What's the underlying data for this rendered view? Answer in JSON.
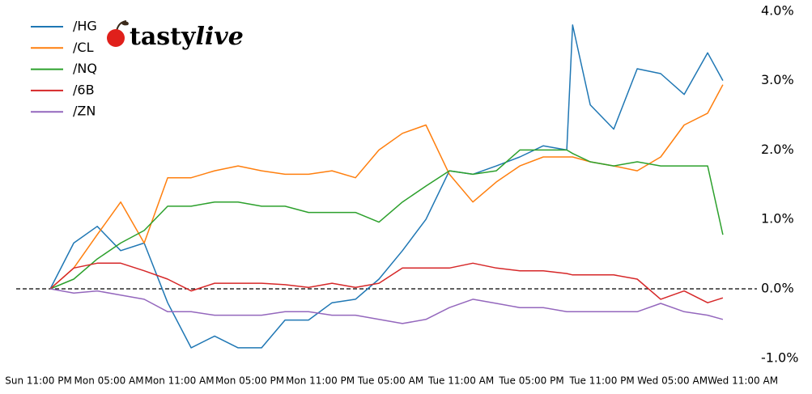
{
  "chart_data": {
    "type": "line",
    "logo": {
      "prefix": "tasty",
      "suffix": "live"
    },
    "x": [
      1,
      3,
      5,
      7,
      9,
      11,
      13,
      15,
      17,
      19,
      21,
      23,
      25,
      27,
      29,
      31,
      33,
      35,
      37,
      39,
      41,
      43,
      45,
      45.5,
      47,
      49,
      51,
      53,
      55,
      57,
      58.3
    ],
    "xlim": [
      -1.9,
      61.2
    ],
    "xticks": [
      {
        "value": 0,
        "label": "Sun 11:00 PM"
      },
      {
        "value": 6,
        "label": "Mon 05:00 AM"
      },
      {
        "value": 12,
        "label": "Mon 11:00 AM"
      },
      {
        "value": 18,
        "label": "Mon 05:00 PM"
      },
      {
        "value": 24,
        "label": "Mon 11:00 PM"
      },
      {
        "value": 30,
        "label": "Tue 05:00 AM"
      },
      {
        "value": 36,
        "label": "Tue 11:00 AM"
      },
      {
        "value": 42,
        "label": "Tue 05:00 PM"
      },
      {
        "value": 48,
        "label": "Tue 11:00 PM"
      },
      {
        "value": 54,
        "label": "Wed 05:00 AM"
      },
      {
        "value": 60,
        "label": "Wed 11:00 AM"
      }
    ],
    "ylim": [
      -1.1,
      4.15
    ],
    "yticks": [
      {
        "value": 4,
        "label": "4.0%"
      },
      {
        "value": 3,
        "label": "3.0%"
      },
      {
        "value": 2,
        "label": "2.0%"
      },
      {
        "value": 1,
        "label": "1.0%"
      },
      {
        "value": 0,
        "label": "0.0%"
      },
      {
        "value": -1,
        "label": "-1.0%"
      }
    ],
    "reference_line": {
      "value": 0,
      "style": "dashed"
    },
    "legend": "upper left",
    "series": [
      {
        "name": "/HG",
        "color": "#1f77b4",
        "values": [
          0,
          0.66,
          0.9,
          0.55,
          0.66,
          -0.2,
          -0.85,
          -0.68,
          -0.85,
          -0.85,
          -0.45,
          -0.45,
          -0.2,
          -0.15,
          0.14,
          0.55,
          1.0,
          1.7,
          1.65,
          1.77,
          1.9,
          2.06,
          2.0,
          3.8,
          2.65,
          2.3,
          3.17,
          3.1,
          2.8,
          3.4,
          3.0
        ]
      },
      {
        "name": "/CL",
        "color": "#ff7f0e",
        "values": [
          0,
          0.3,
          0.78,
          1.25,
          0.66,
          1.6,
          1.6,
          1.7,
          1.77,
          1.7,
          1.65,
          1.65,
          1.7,
          1.6,
          2.0,
          2.24,
          2.36,
          1.65,
          1.25,
          1.54,
          1.77,
          1.9,
          1.9,
          1.9,
          1.83,
          1.77,
          1.7,
          1.9,
          2.36,
          2.53,
          2.94
        ]
      },
      {
        "name": "/NQ",
        "color": "#2ca02c",
        "values": [
          0,
          0.14,
          0.43,
          0.66,
          0.84,
          1.19,
          1.19,
          1.25,
          1.25,
          1.19,
          1.19,
          1.1,
          1.1,
          1.1,
          0.96,
          1.25,
          1.48,
          1.7,
          1.65,
          1.7,
          2.0,
          2.0,
          2.0,
          1.95,
          1.83,
          1.77,
          1.83,
          1.77,
          1.77,
          1.77,
          0.78
        ]
      },
      {
        "name": "/6B",
        "color": "#d62728",
        "values": [
          0,
          0.3,
          0.37,
          0.37,
          0.26,
          0.14,
          -0.03,
          0.08,
          0.08,
          0.08,
          0.06,
          0.02,
          0.08,
          0.02,
          0.08,
          0.3,
          0.3,
          0.3,
          0.37,
          0.3,
          0.26,
          0.26,
          0.22,
          0.2,
          0.2,
          0.2,
          0.14,
          -0.15,
          -0.03,
          -0.2,
          -0.13
        ]
      },
      {
        "name": "/ZN",
        "color": "#9467bd",
        "values": [
          0,
          -0.06,
          -0.03,
          -0.09,
          -0.15,
          -0.33,
          -0.33,
          -0.38,
          -0.38,
          -0.38,
          -0.33,
          -0.33,
          -0.38,
          -0.38,
          -0.44,
          -0.5,
          -0.44,
          -0.27,
          -0.15,
          -0.21,
          -0.27,
          -0.27,
          -0.33,
          -0.33,
          -0.33,
          -0.33,
          -0.33,
          -0.21,
          -0.33,
          -0.38,
          -0.44
        ]
      }
    ]
  }
}
